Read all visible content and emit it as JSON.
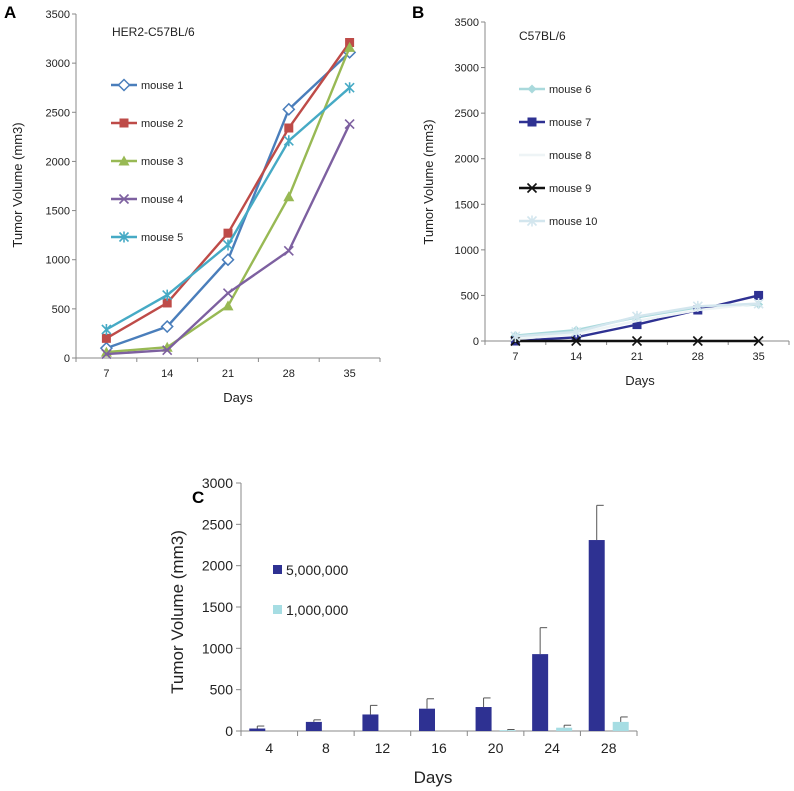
{
  "chart_data": [
    {
      "panel": "A",
      "type": "line",
      "title": "HER2-C57BL/6",
      "xlabel": "Days",
      "ylabel": "Tumor Volume (mm3)",
      "categories": [
        "7",
        "14",
        "21",
        "28",
        "35"
      ],
      "ylim": [
        0,
        3500
      ],
      "yticks": [
        0,
        500,
        1000,
        1500,
        2000,
        2500,
        3000,
        3500
      ],
      "grid": false,
      "legend": "left",
      "series": [
        {
          "name": "mouse 1",
          "values": [
            100,
            320,
            1000,
            2530,
            3110
          ],
          "color": "#4a7ebb",
          "marker": "diamond-open"
        },
        {
          "name": "mouse 2",
          "values": [
            200,
            560,
            1270,
            2340,
            3210
          ],
          "color": "#be4b48",
          "marker": "square"
        },
        {
          "name": "mouse 3",
          "values": [
            60,
            110,
            530,
            1640,
            3160
          ],
          "color": "#98b954",
          "marker": "triangle"
        },
        {
          "name": "mouse 4",
          "values": [
            40,
            80,
            660,
            1090,
            2380
          ],
          "color": "#7d60a0",
          "marker": "x"
        },
        {
          "name": "mouse 5",
          "values": [
            290,
            640,
            1150,
            2210,
            2750
          ],
          "color": "#46aac5",
          "marker": "star"
        }
      ]
    },
    {
      "panel": "B",
      "type": "line",
      "title": "C57BL/6",
      "xlabel": "Days",
      "ylabel": "Tumor Volume (mm3)",
      "categories": [
        "7",
        "14",
        "21",
        "28",
        "35"
      ],
      "ylim": [
        0,
        3500
      ],
      "yticks": [
        0,
        500,
        1000,
        1500,
        2000,
        2500,
        3000,
        3500
      ],
      "grid": false,
      "legend": "left",
      "series": [
        {
          "name": "mouse 6",
          "values": [
            60,
            120,
            260,
            370,
            400
          ],
          "color": "#a9d9dc",
          "marker": "diamond"
        },
        {
          "name": "mouse 7",
          "values": [
            0,
            40,
            180,
            340,
            500
          ],
          "color": "#2e3192",
          "marker": "square"
        },
        {
          "name": "mouse 8",
          "values": [
            20,
            80,
            220,
            340,
            410
          ],
          "color": "#eef4f6",
          "marker": "none"
        },
        {
          "name": "mouse 9",
          "values": [
            0,
            0,
            0,
            0,
            0
          ],
          "color": "#111111",
          "marker": "x"
        },
        {
          "name": "mouse 10",
          "values": [
            50,
            100,
            270,
            380,
            410
          ],
          "color": "#d3e6ee",
          "marker": "star"
        }
      ]
    },
    {
      "panel": "C",
      "type": "bar",
      "xlabel": "Days",
      "ylabel": "Tumor Volume (mm3)",
      "categories": [
        "4",
        "8",
        "12",
        "16",
        "20",
        "24",
        "28"
      ],
      "ylim": [
        0,
        3000
      ],
      "yticks": [
        0,
        500,
        1000,
        1500,
        2000,
        2500,
        3000
      ],
      "grid": false,
      "legend": "left",
      "series": [
        {
          "name": "5,000,000",
          "values": [
            30,
            110,
            200,
            270,
            290,
            930,
            2310
          ],
          "errors": [
            30,
            25,
            110,
            120,
            110,
            320,
            420
          ],
          "color": "#2e3192"
        },
        {
          "name": "1,000,000",
          "values": [
            0,
            0,
            0,
            0,
            10,
            40,
            110
          ],
          "errors": [
            0,
            0,
            0,
            0,
            8,
            30,
            60
          ],
          "color": "#a6dde3"
        }
      ]
    }
  ]
}
